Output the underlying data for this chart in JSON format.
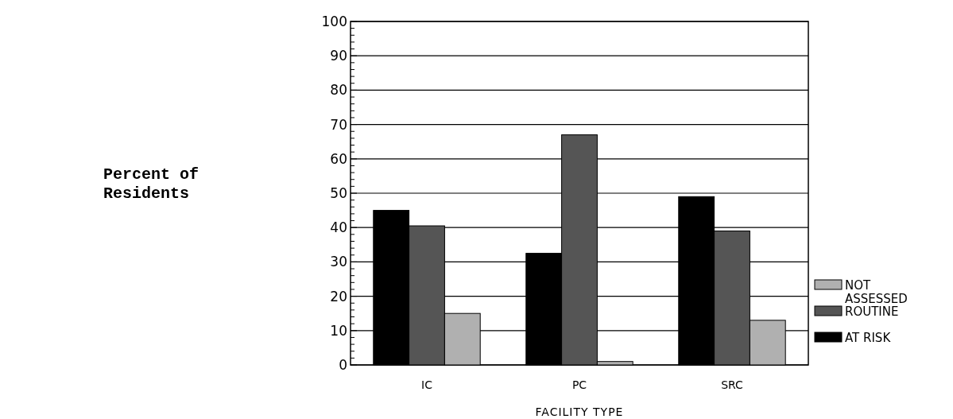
{
  "chart_data": {
    "type": "bar",
    "xlabel": "FACILITY TYPE",
    "annotations": [
      "Percent of\nResidents"
    ],
    "categories": [
      "IC",
      "PC",
      "SRC"
    ],
    "series": [
      {
        "name": "AT RISK",
        "color": "#000000",
        "values": [
          45,
          32.5,
          49
        ]
      },
      {
        "name": "ROUTINE",
        "color": "#555555",
        "values": [
          40.5,
          67,
          39
        ]
      },
      {
        "name": "NOT ASSESSED",
        "color": "#b0b0b0",
        "values": [
          15,
          1,
          13
        ]
      }
    ],
    "ylim": [
      0,
      100
    ],
    "yticks": [
      0,
      {
        "value": 2,
        "label": null
      },
      {
        "value": 4,
        "label": null
      },
      {
        "value": 6,
        "label": null
      },
      {
        "value": 8,
        "label": null
      },
      10,
      {
        "value": 12,
        "label": null
      },
      {
        "value": 14,
        "label": null
      },
      {
        "value": 16,
        "label": null
      },
      {
        "value": 18,
        "label": null
      },
      20,
      {
        "value": 22,
        "label": null
      },
      {
        "value": 24,
        "label": null
      },
      {
        "value": 26,
        "label": null
      },
      {
        "value": 28,
        "label": null
      },
      30,
      {
        "value": 32,
        "label": null
      },
      {
        "value": 34,
        "label": null
      },
      {
        "value": 36,
        "label": null
      },
      {
        "value": 38,
        "label": null
      },
      40,
      {
        "value": 42,
        "label": null
      },
      {
        "value": 44,
        "label": null
      },
      {
        "value": 46,
        "label": null
      },
      {
        "value": 48,
        "label": null
      },
      50,
      {
        "value": 52,
        "label": null
      },
      {
        "value": 54,
        "label": null
      },
      {
        "value": 56,
        "label": null
      },
      {
        "value": 58,
        "label": null
      },
      60,
      {
        "value": 62,
        "label": null
      },
      {
        "value": 64,
        "label": null
      },
      {
        "value": 66,
        "label": null
      },
      {
        "value": 68,
        "label": null
      },
      70,
      {
        "value": 72,
        "label": null
      },
      {
        "value": 74,
        "label": null
      },
      {
        "value": 76,
        "label": null
      },
      {
        "value": 78,
        "label": null
      },
      80,
      {
        "value": 82,
        "label": null
      },
      {
        "value": 84,
        "label": null
      },
      {
        "value": 86,
        "label": null
      },
      {
        "value": 88,
        "label": null
      },
      90,
      {
        "value": 92,
        "label": null
      },
      {
        "value": 94,
        "label": null
      },
      {
        "value": 96,
        "label": null
      },
      {
        "value": 98,
        "label": null
      },
      100
    ],
    "grid": "y",
    "legend": "right"
  }
}
